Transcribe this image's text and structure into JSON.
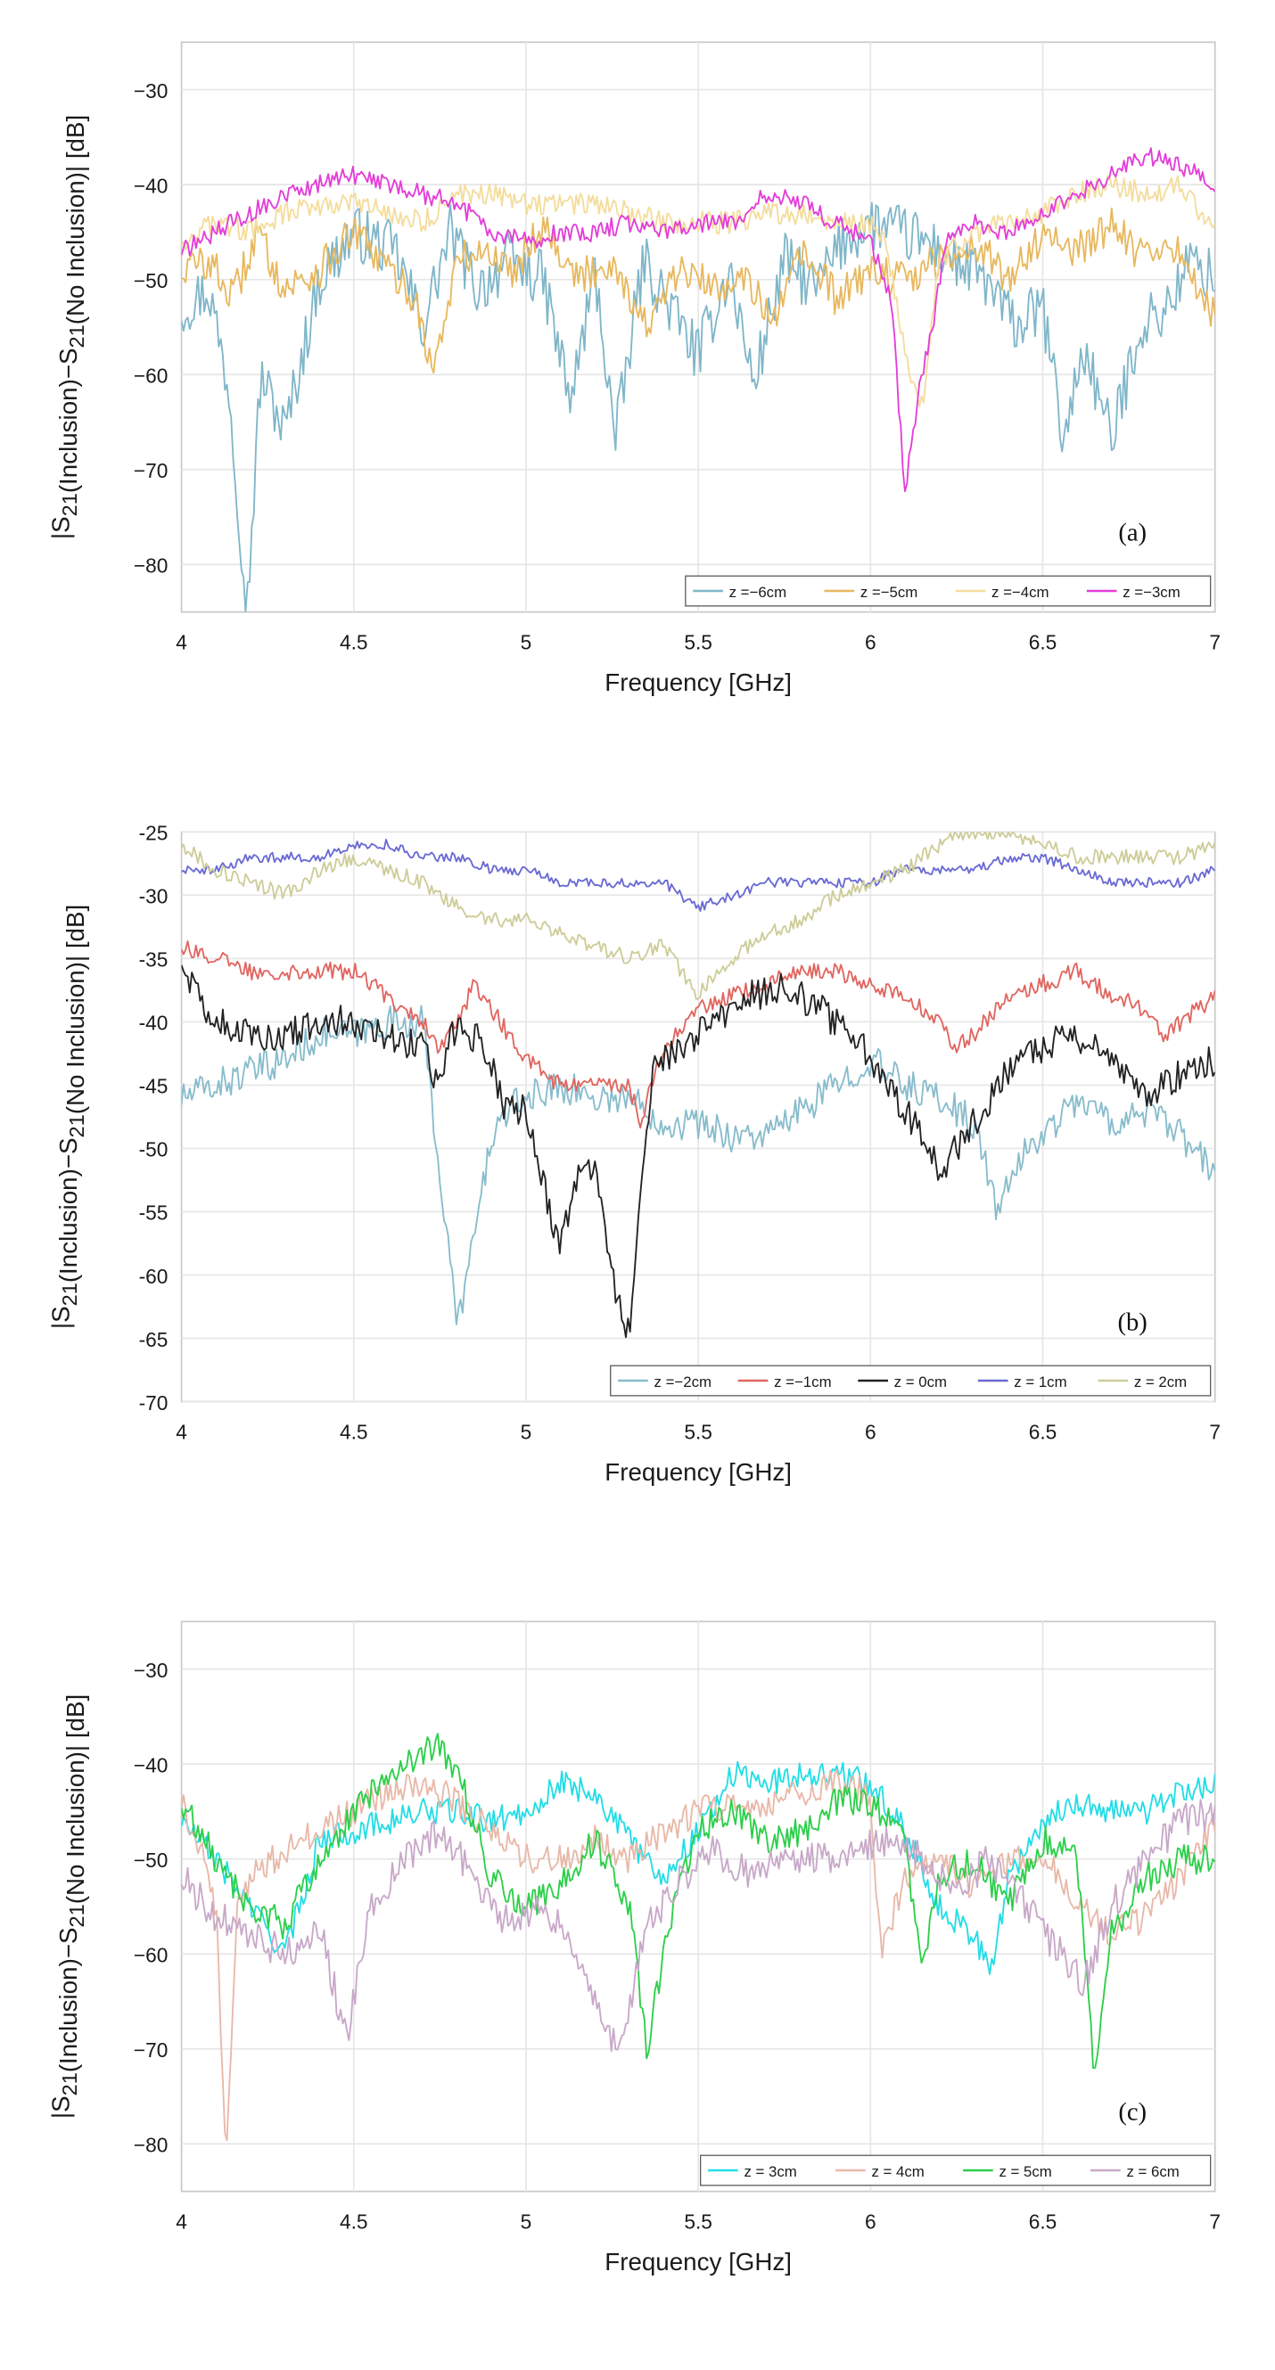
{
  "chart_data": [
    {
      "type": "line",
      "panel_label": "(a)",
      "xlabel": "Frequency [GHz]",
      "ylabel": "|S21(Inclusion)−S21(No Inclusion)| [dB]",
      "xlim": [
        4,
        7
      ],
      "ylim": [
        -85,
        -25
      ],
      "xticks": [
        "4",
        "4.5",
        "5",
        "5.5",
        "6",
        "6.5",
        "7"
      ],
      "yticks": [
        "−30",
        "−40",
        "−50",
        "−60",
        "−70",
        "−80"
      ],
      "legend_position": "bottom-right",
      "series": [
        {
          "name": "z =−6cm",
          "color": "#7fb6c9",
          "x": [
            4.0,
            4.08,
            4.14,
            4.19,
            4.23,
            4.3,
            4.4,
            4.5,
            4.62,
            4.7,
            4.78,
            4.86,
            4.95,
            5.05,
            5.13,
            5.2,
            5.26,
            5.34,
            5.42,
            5.5,
            5.59,
            5.66,
            5.75,
            5.84,
            5.92,
            6.0,
            6.08,
            6.16,
            6.24,
            6.33,
            6.42,
            6.5,
            6.56,
            6.62,
            6.7,
            6.78,
            6.86,
            6.93,
            7.0
          ],
          "y": [
            -53,
            -51,
            -62,
            -85,
            -60,
            -66,
            -50,
            -45,
            -47,
            -55,
            -45,
            -51,
            -48,
            -50,
            -63,
            -49,
            -67,
            -48,
            -53,
            -58,
            -49,
            -61,
            -48,
            -51,
            -46,
            -44,
            -45,
            -46,
            -48,
            -50,
            -55,
            -53,
            -67,
            -57,
            -67,
            -55,
            -53,
            -48,
            -50
          ],
          "jitter": 3.0
        },
        {
          "name": "z =−5cm",
          "color": "#e8b85e",
          "x": [
            4.0,
            4.08,
            4.15,
            4.22,
            4.3,
            4.4,
            4.5,
            4.6,
            4.68,
            4.73,
            4.8,
            4.88,
            4.96,
            5.05,
            5.15,
            5.25,
            5.35,
            5.45,
            5.55,
            5.63,
            5.72,
            5.8,
            5.9,
            6.0,
            6.1,
            6.2,
            6.3,
            6.4,
            6.5,
            6.6,
            6.7,
            6.8,
            6.9,
            7.0
          ],
          "y": [
            -49,
            -48,
            -52,
            -45,
            -51,
            -49,
            -45,
            -49,
            -52,
            -60,
            -48,
            -47,
            -49,
            -44,
            -50,
            -48,
            -55,
            -49,
            -51,
            -49,
            -55,
            -47,
            -52,
            -49,
            -50,
            -48,
            -46,
            -50,
            -45,
            -47,
            -44,
            -48,
            -47,
            -54
          ],
          "jitter": 2.0
        },
        {
          "name": "z =−4cm",
          "color": "#f4dc9c",
          "x": [
            4.0,
            4.1,
            4.2,
            4.3,
            4.4,
            4.5,
            4.6,
            4.7,
            4.8,
            4.9,
            5.0,
            5.1,
            5.2,
            5.3,
            5.4,
            5.5,
            5.6,
            5.7,
            5.8,
            5.9,
            6.0,
            6.05,
            6.1,
            6.15,
            6.2,
            6.3,
            6.4,
            6.5,
            6.6,
            6.7,
            6.8,
            6.9,
            7.0
          ],
          "y": [
            -46,
            -44,
            -45,
            -43,
            -42,
            -42,
            -43,
            -44,
            -41,
            -41,
            -42,
            -42,
            -42,
            -43,
            -44,
            -44,
            -44,
            -43,
            -43,
            -44,
            -44,
            -47,
            -58,
            -63,
            -48,
            -45,
            -44,
            -43,
            -41,
            -40,
            -41,
            -40,
            -45
          ],
          "jitter": 1.2
        },
        {
          "name": "z =−3cm",
          "color": "#e33ed8",
          "x": [
            4.0,
            4.1,
            4.2,
            4.3,
            4.4,
            4.5,
            4.6,
            4.7,
            4.8,
            4.9,
            5.0,
            5.1,
            5.2,
            5.3,
            5.4,
            5.5,
            5.6,
            5.7,
            5.8,
            5.9,
            6.0,
            6.06,
            6.1,
            6.14,
            6.18,
            6.22,
            6.3,
            6.4,
            6.5,
            6.6,
            6.7,
            6.8,
            6.9,
            7.0
          ],
          "y": [
            -47,
            -45,
            -43,
            -41,
            -40,
            -39,
            -40,
            -41,
            -42,
            -45,
            -46,
            -45,
            -45,
            -44,
            -45,
            -44,
            -44,
            -41,
            -42,
            -44,
            -46,
            -52,
            -72,
            -62,
            -55,
            -46,
            -44,
            -45,
            -43,
            -41,
            -39,
            -37,
            -38,
            -40
          ],
          "jitter": 1.0
        }
      ]
    },
    {
      "type": "line",
      "panel_label": "(b)",
      "xlabel": "Frequency [GHz]",
      "ylabel": "|S21(Inclusion)−S21(No Inclusion)| [dB]",
      "xlim": [
        4,
        7
      ],
      "ylim": [
        -70,
        -25
      ],
      "xticks": [
        "4",
        "4.5",
        "5",
        "5.5",
        "6",
        "6.5",
        "7"
      ],
      "yticks": [
        "-25",
        "-30",
        "-35",
        "-40",
        "-45",
        "-50",
        "-55",
        "-60",
        "-65",
        "-70"
      ],
      "legend_position": "bottom-right",
      "series": [
        {
          "name": "z =−2cm",
          "color": "#87bccc",
          "x": [
            4.0,
            4.1,
            4.2,
            4.3,
            4.4,
            4.5,
            4.6,
            4.7,
            4.75,
            4.8,
            4.85,
            4.9,
            4.95,
            5.0,
            5.1,
            5.2,
            5.3,
            5.4,
            5.5,
            5.6,
            5.7,
            5.8,
            5.9,
            6.0,
            6.1,
            6.2,
            6.3,
            6.37,
            6.45,
            6.5,
            6.6,
            6.7,
            6.8,
            6.9,
            7.0
          ],
          "y": [
            -46,
            -45,
            -44,
            -43,
            -41,
            -41,
            -40,
            -40,
            -52,
            -64,
            -57,
            -49,
            -47,
            -46,
            -45,
            -46,
            -46,
            -48,
            -48,
            -49,
            -49,
            -47,
            -45,
            -43,
            -45,
            -46,
            -48,
            -55,
            -50,
            -49,
            -46,
            -48,
            -47,
            -49,
            -52
          ],
          "jitter": 1.3
        },
        {
          "name": "z =−1cm",
          "color": "#e06660",
          "x": [
            4.0,
            4.1,
            4.2,
            4.3,
            4.4,
            4.5,
            4.6,
            4.7,
            4.75,
            4.8,
            4.85,
            4.9,
            5.0,
            5.1,
            5.2,
            5.3,
            5.33,
            5.4,
            5.5,
            5.6,
            5.7,
            5.8,
            5.9,
            6.0,
            6.1,
            6.2,
            6.25,
            6.3,
            6.4,
            6.5,
            6.6,
            6.7,
            6.8,
            6.85,
            6.9,
            7.0
          ],
          "y": [
            -34,
            -35,
            -36,
            -36,
            -36,
            -36,
            -38,
            -40,
            -42,
            -40,
            -37,
            -39,
            -43,
            -45,
            -45,
            -45,
            -48,
            -42,
            -39,
            -38,
            -37,
            -36,
            -36,
            -37,
            -38,
            -40,
            -42,
            -41,
            -38,
            -37,
            -36,
            -38,
            -39,
            -41,
            -40,
            -38
          ],
          "jitter": 0.7
        },
        {
          "name": "z = 0cm",
          "color": "#222222",
          "x": [
            4.0,
            4.05,
            4.1,
            4.2,
            4.3,
            4.4,
            4.5,
            4.6,
            4.7,
            4.74,
            4.8,
            4.88,
            4.94,
            5.0,
            5.05,
            5.1,
            5.15,
            5.2,
            5.25,
            5.3,
            5.33,
            5.37,
            5.45,
            5.55,
            5.65,
            5.75,
            5.85,
            5.95,
            6.05,
            6.15,
            6.2,
            6.3,
            6.4,
            6.5,
            6.6,
            6.7,
            6.8,
            6.9,
            7.0
          ],
          "y": [
            -35,
            -38,
            -40,
            -41,
            -41,
            -40,
            -40,
            -41,
            -42,
            -45,
            -40,
            -42,
            -47,
            -47,
            -53,
            -58,
            -52,
            -52,
            -60,
            -65,
            -55,
            -44,
            -42,
            -40,
            -38,
            -37,
            -39,
            -41,
            -45,
            -49,
            -52,
            -48,
            -44,
            -42,
            -41,
            -43,
            -46,
            -44,
            -43
          ],
          "jitter": 1.3
        },
        {
          "name": "z = 1cm",
          "color": "#6a6ad4",
          "x": [
            4.0,
            4.1,
            4.2,
            4.3,
            4.4,
            4.5,
            4.6,
            4.7,
            4.8,
            4.9,
            5.0,
            5.1,
            5.2,
            5.3,
            5.4,
            5.5,
            5.6,
            5.7,
            5.8,
            5.9,
            6.0,
            6.1,
            6.2,
            6.3,
            6.4,
            6.5,
            6.6,
            6.7,
            6.8,
            6.9,
            7.0
          ],
          "y": [
            -28,
            -28,
            -27,
            -27,
            -27,
            -26,
            -26,
            -27,
            -27,
            -28,
            -28,
            -29,
            -29,
            -29,
            -29,
            -31,
            -30,
            -29,
            -29,
            -29,
            -29,
            -28,
            -28,
            -28,
            -27,
            -27,
            -28,
            -29,
            -29,
            -29,
            -28
          ],
          "jitter": 0.4
        },
        {
          "name": "z = 2cm",
          "color": "#cdcc99",
          "x": [
            4.0,
            4.1,
            4.2,
            4.3,
            4.4,
            4.5,
            4.6,
            4.7,
            4.8,
            4.9,
            5.0,
            5.1,
            5.2,
            5.3,
            5.4,
            5.45,
            5.5,
            5.55,
            5.6,
            5.7,
            5.8,
            5.9,
            6.0,
            6.1,
            6.2,
            6.3,
            6.4,
            6.5,
            6.6,
            6.7,
            6.8,
            6.9,
            7.0
          ],
          "y": [
            -26,
            -28,
            -29,
            -30,
            -28,
            -27,
            -28,
            -29,
            -31,
            -32,
            -32,
            -33,
            -34,
            -35,
            -34,
            -36,
            -38,
            -36,
            -35,
            -33,
            -32,
            -30,
            -29,
            -28,
            -26,
            -25,
            -25,
            -26,
            -27,
            -27,
            -27,
            -27,
            -26
          ],
          "jitter": 0.6
        }
      ]
    },
    {
      "type": "line",
      "panel_label": "(c)",
      "xlabel": "Frequency [GHz]",
      "ylabel": "|S21(Inclusion)−S21(No Inclusion)| [dB]",
      "xlim": [
        4,
        7
      ],
      "ylim": [
        -85,
        -25
      ],
      "xticks": [
        "4",
        "4.5",
        "5",
        "5.5",
        "6",
        "6.5",
        "7"
      ],
      "yticks": [
        "−30",
        "−40",
        "−50",
        "−60",
        "−70",
        "−80"
      ],
      "legend_position": "bottom-right",
      "series": [
        {
          "name": "z = 3cm",
          "color": "#22dde6",
          "x": [
            4.0,
            4.1,
            4.2,
            4.3,
            4.4,
            4.5,
            4.6,
            4.7,
            4.8,
            4.9,
            5.0,
            5.1,
            5.2,
            5.3,
            5.4,
            5.5,
            5.6,
            5.7,
            5.8,
            5.9,
            6.0,
            6.1,
            6.2,
            6.3,
            6.35,
            6.4,
            6.5,
            6.6,
            6.7,
            6.8,
            6.9,
            7.0
          ],
          "y": [
            -46,
            -50,
            -55,
            -60,
            -48,
            -47,
            -46,
            -45,
            -45,
            -46,
            -45,
            -42,
            -43,
            -48,
            -52,
            -47,
            -41,
            -42,
            -41,
            -41,
            -42,
            -47,
            -55,
            -58,
            -62,
            -52,
            -46,
            -44,
            -45,
            -45,
            -43,
            -42
          ],
          "jitter": 1.4
        },
        {
          "name": "z = 4cm",
          "color": "#e8b8a8",
          "x": [
            4.0,
            4.05,
            4.1,
            4.13,
            4.16,
            4.2,
            4.3,
            4.4,
            4.5,
            4.6,
            4.7,
            4.8,
            4.9,
            5.0,
            5.1,
            5.2,
            5.3,
            5.4,
            5.5,
            5.6,
            5.7,
            5.8,
            5.9,
            6.0,
            6.03,
            6.1,
            6.2,
            6.3,
            6.4,
            6.5,
            6.6,
            6.7,
            6.8,
            6.9,
            7.0
          ],
          "y": [
            -44,
            -48,
            -55,
            -82,
            -55,
            -52,
            -49,
            -47,
            -45,
            -43,
            -42,
            -44,
            -47,
            -50,
            -50,
            -48,
            -50,
            -47,
            -45,
            -44,
            -44,
            -43,
            -42,
            -43,
            -60,
            -52,
            -50,
            -53,
            -50,
            -50,
            -54,
            -58,
            -56,
            -52,
            -46
          ],
          "jitter": 1.6
        },
        {
          "name": "z = 5cm",
          "color": "#2ccf4a",
          "x": [
            4.0,
            4.1,
            4.2,
            4.3,
            4.4,
            4.5,
            4.6,
            4.7,
            4.75,
            4.8,
            4.85,
            4.9,
            5.0,
            5.1,
            5.2,
            5.3,
            5.35,
            5.4,
            5.45,
            5.5,
            5.6,
            5.7,
            5.8,
            5.9,
            6.0,
            6.1,
            6.15,
            6.2,
            6.3,
            6.4,
            6.5,
            6.6,
            6.65,
            6.7,
            6.8,
            6.9,
            7.0
          ],
          "y": [
            -44,
            -50,
            -55,
            -57,
            -50,
            -45,
            -41,
            -39,
            -38,
            -41,
            -46,
            -52,
            -55,
            -53,
            -48,
            -55,
            -70,
            -60,
            -52,
            -47,
            -45,
            -48,
            -47,
            -44,
            -44,
            -48,
            -62,
            -52,
            -50,
            -55,
            -48,
            -50,
            -73,
            -58,
            -52,
            -50,
            -50
          ],
          "jitter": 1.6
        },
        {
          "name": "z = 6cm",
          "color": "#c8a8c8",
          "x": [
            4.0,
            4.1,
            4.2,
            4.3,
            4.4,
            4.48,
            4.55,
            4.65,
            4.75,
            4.85,
            4.95,
            5.05,
            5.15,
            5.27,
            5.35,
            5.45,
            5.55,
            5.65,
            5.75,
            5.85,
            5.95,
            6.05,
            6.15,
            6.25,
            6.35,
            6.45,
            6.55,
            6.62,
            6.7,
            6.8,
            6.9,
            7.0
          ],
          "y": [
            -52,
            -56,
            -58,
            -60,
            -57,
            -69,
            -55,
            -50,
            -47,
            -52,
            -57,
            -55,
            -60,
            -71,
            -57,
            -52,
            -49,
            -52,
            -50,
            -50,
            -49,
            -48,
            -50,
            -53,
            -50,
            -55,
            -60,
            -63,
            -55,
            -50,
            -46,
            -45
          ],
          "jitter": 1.8
        }
      ]
    }
  ]
}
